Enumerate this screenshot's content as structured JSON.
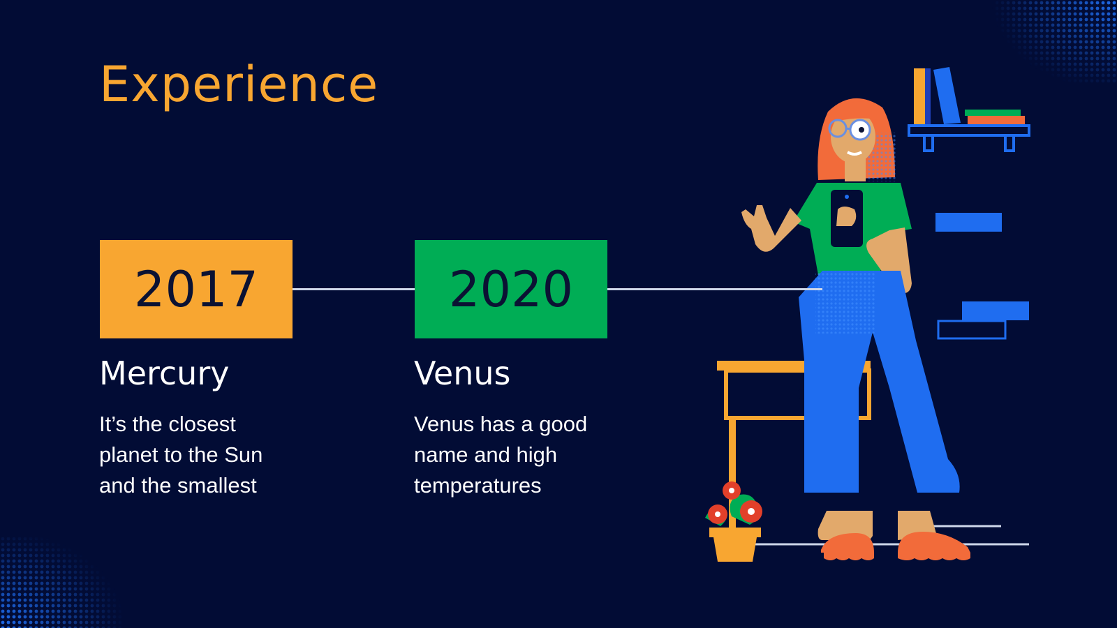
{
  "slide": {
    "title": "Experience",
    "milestones": [
      {
        "year": "2017",
        "name": "Mercury",
        "description": "It’s the closest\nplanet to the Sun\nand the smallest",
        "color": "#f8a631"
      },
      {
        "year": "2020",
        "name": "Venus",
        "description": "Venus has a good\nname and high\ntemperatures",
        "color": "#00ad55"
      }
    ]
  },
  "colors": {
    "background": "#020c35",
    "accent_orange": "#f8a631",
    "accent_green": "#00ad55",
    "accent_blue": "#1f6df0"
  }
}
